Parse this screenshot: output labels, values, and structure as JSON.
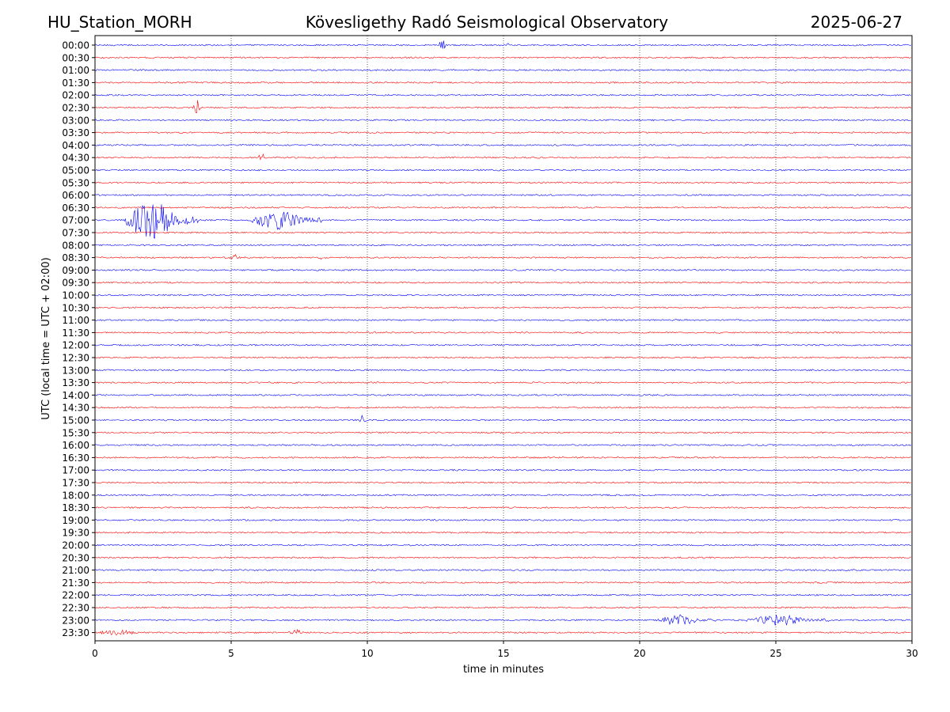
{
  "header": {
    "station": "HU_Station_MORH",
    "observatory": "Kövesligethy Radó Seismological Observatory",
    "date": "2025-06-27"
  },
  "chart_data": {
    "type": "line",
    "title": "Kövesligethy Radó Seismological Observatory",
    "xlabel": "time in minutes",
    "ylabel": "UTC (local time = UTC + 02:00)",
    "xlim": [
      0,
      30
    ],
    "x_ticks": [
      "0",
      "5",
      "10",
      "15",
      "20",
      "25",
      "30"
    ],
    "x_tick_values": [
      0,
      5,
      10,
      15,
      20,
      25,
      30
    ],
    "vertical_grid": "dotted",
    "rows": [
      "00:00",
      "00:30",
      "01:00",
      "01:30",
      "02:00",
      "02:30",
      "03:00",
      "03:30",
      "04:00",
      "04:30",
      "05:00",
      "05:30",
      "06:00",
      "06:30",
      "07:00",
      "07:30",
      "08:00",
      "08:30",
      "09:00",
      "09:30",
      "10:00",
      "10:30",
      "11:00",
      "11:30",
      "12:00",
      "12:30",
      "13:00",
      "13:30",
      "14:00",
      "14:30",
      "15:00",
      "15:30",
      "16:00",
      "16:30",
      "17:00",
      "17:30",
      "18:00",
      "18:30",
      "19:00",
      "19:30",
      "20:00",
      "20:30",
      "21:00",
      "21:30",
      "22:00",
      "22:30",
      "23:00",
      "23:30"
    ],
    "trace_colors": [
      "#0000ff",
      "#ff0000"
    ],
    "events": [
      {
        "row": "00:00",
        "start_min": 12.6,
        "end_min": 13.0,
        "amplitude": "medium"
      },
      {
        "row": "00:00",
        "start_min": 15.1,
        "end_min": 15.3,
        "amplitude": "small"
      },
      {
        "row": "02:30",
        "start_min": 3.6,
        "end_min": 3.9,
        "amplitude": "large"
      },
      {
        "row": "04:30",
        "start_min": 6.0,
        "end_min": 6.3,
        "amplitude": "medium"
      },
      {
        "row": "07:00",
        "start_min": 1.0,
        "end_min": 3.8,
        "amplitude": "very large"
      },
      {
        "row": "07:00",
        "start_min": 5.7,
        "end_min": 8.4,
        "amplitude": "large"
      },
      {
        "row": "08:30",
        "start_min": 4.9,
        "end_min": 5.5,
        "amplitude": "small"
      },
      {
        "row": "08:30",
        "start_min": 8.2,
        "end_min": 8.5,
        "amplitude": "small"
      },
      {
        "row": "15:00",
        "start_min": 9.7,
        "end_min": 10.0,
        "amplitude": "medium"
      },
      {
        "row": "23:00",
        "start_min": 20.6,
        "end_min": 22.8,
        "amplitude": "medium"
      },
      {
        "row": "23:00",
        "start_min": 23.9,
        "end_min": 27.0,
        "amplitude": "medium"
      },
      {
        "row": "23:30",
        "start_min": 0.0,
        "end_min": 2.1,
        "amplitude": "small"
      },
      {
        "row": "23:30",
        "start_min": 7.1,
        "end_min": 7.9,
        "amplitude": "small"
      }
    ]
  }
}
